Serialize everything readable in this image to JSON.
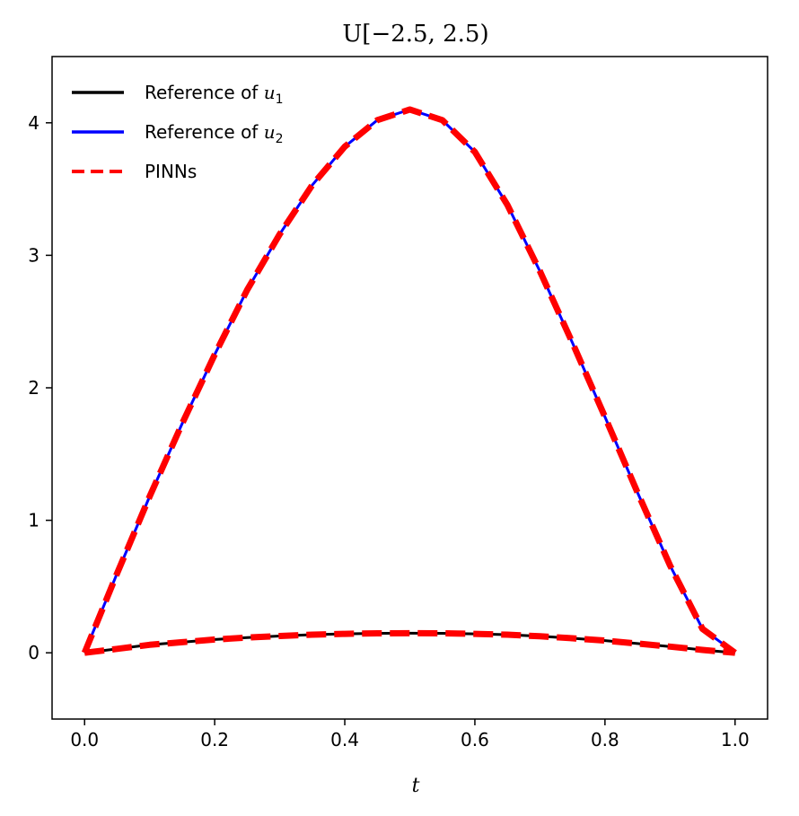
{
  "chart_data": {
    "type": "line",
    "title": "U[−2.5, 2.5)",
    "xlabel": "t",
    "ylabel": "",
    "xlim": [
      -0.05,
      1.05
    ],
    "ylim": [
      -0.5,
      4.5
    ],
    "xticks": [
      0.0,
      0.2,
      0.4,
      0.6,
      0.8,
      1.0
    ],
    "xtick_labels": [
      "0.0",
      "0.2",
      "0.4",
      "0.6",
      "0.8",
      "1.0"
    ],
    "yticks": [
      0,
      1,
      2,
      3,
      4
    ],
    "ytick_labels": [
      "0",
      "1",
      "2",
      "3",
      "4"
    ],
    "grid": false,
    "legend_position": "top-left",
    "series": [
      {
        "name": "Reference of u1",
        "legend_label": "Reference of ",
        "legend_math": "u",
        "legend_sub": "1",
        "color": "#000000",
        "style": "solid",
        "x": [
          0.0,
          0.05,
          0.1,
          0.15,
          0.2,
          0.25,
          0.3,
          0.35,
          0.4,
          0.45,
          0.5,
          0.55,
          0.6,
          0.65,
          0.7,
          0.75,
          0.8,
          0.85,
          0.9,
          0.95,
          1.0
        ],
        "y": [
          0.0,
          0.03,
          0.06,
          0.08,
          0.1,
          0.115,
          0.127,
          0.137,
          0.143,
          0.147,
          0.148,
          0.147,
          0.143,
          0.137,
          0.125,
          0.11,
          0.092,
          0.07,
          0.047,
          0.022,
          0.0
        ]
      },
      {
        "name": "Reference of u2",
        "legend_label": "Reference of ",
        "legend_math": "u",
        "legend_sub": "2",
        "color": "#0000ff",
        "style": "solid",
        "x": [
          0.0,
          0.05,
          0.1,
          0.15,
          0.2,
          0.25,
          0.3,
          0.35,
          0.4,
          0.45,
          0.5,
          0.55,
          0.6,
          0.65,
          0.7,
          0.75,
          0.8,
          0.85,
          0.9,
          0.95,
          1.0
        ],
        "y": [
          0.0,
          0.6,
          1.18,
          1.73,
          2.25,
          2.74,
          3.16,
          3.53,
          3.82,
          4.02,
          4.1,
          4.02,
          3.78,
          3.38,
          2.88,
          2.34,
          1.78,
          1.21,
          0.66,
          0.18,
          0.0
        ]
      },
      {
        "name": "PINNs",
        "legend_label": "PINNs",
        "color": "#ff0000",
        "style": "dashed",
        "x": [
          0.0,
          0.05,
          0.1,
          0.15,
          0.2,
          0.25,
          0.3,
          0.35,
          0.4,
          0.45,
          0.5,
          0.55,
          0.6,
          0.65,
          0.7,
          0.75,
          0.8,
          0.85,
          0.9,
          0.95,
          1.0
        ],
        "y": [
          0.0,
          0.6,
          1.18,
          1.73,
          2.25,
          2.74,
          3.16,
          3.53,
          3.82,
          4.02,
          4.1,
          4.02,
          3.78,
          3.38,
          2.88,
          2.34,
          1.78,
          1.21,
          0.66,
          0.18,
          0.0
        ],
        "y_u1": [
          0.0,
          0.03,
          0.06,
          0.08,
          0.1,
          0.115,
          0.127,
          0.137,
          0.143,
          0.147,
          0.148,
          0.147,
          0.143,
          0.137,
          0.125,
          0.11,
          0.092,
          0.07,
          0.047,
          0.022,
          0.0
        ]
      }
    ]
  }
}
